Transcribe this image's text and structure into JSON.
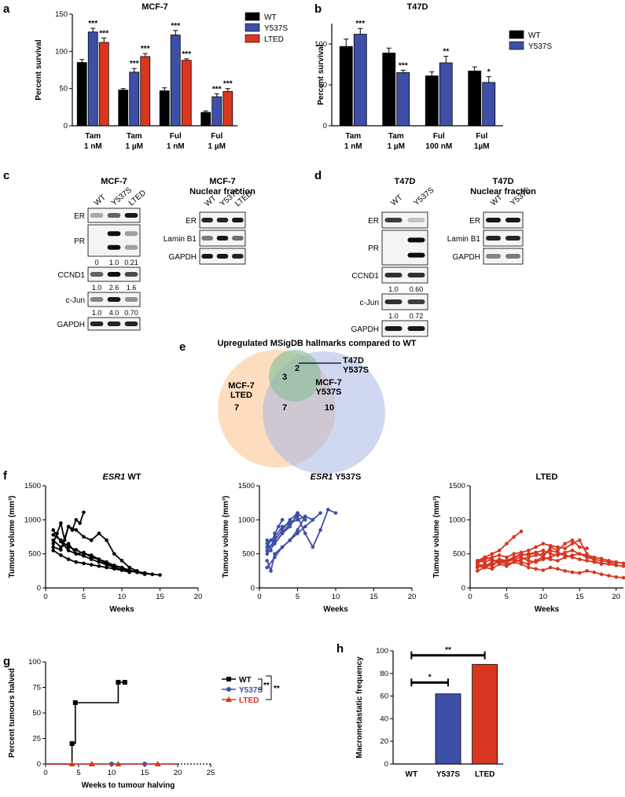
{
  "panels": {
    "a": "a",
    "b": "b",
    "c": "c",
    "d": "d",
    "e": "e",
    "f": "f",
    "g": "g",
    "h": "h"
  },
  "colors": {
    "wt": "#000000",
    "y537s": "#3d4fa6",
    "lted": "#d93620",
    "venn_orange": "#f9c389",
    "venn_blue": "#b5c0e6",
    "venn_green": "#8bbf9b"
  },
  "chart_data": [
    {
      "id": "a",
      "type": "bar",
      "title": "MCF-7",
      "ylabel": "Percent survival",
      "ylim": [
        0,
        150
      ],
      "yticks": [
        0,
        50,
        100,
        150
      ],
      "categories": [
        [
          "Tam",
          "1 nM"
        ],
        [
          "Tam",
          "1 µM"
        ],
        [
          "Ful",
          "1 nM"
        ],
        [
          "Ful",
          "1 µM"
        ]
      ],
      "series": [
        {
          "name": "WT",
          "values": [
            85,
            48,
            47,
            18
          ],
          "errors": [
            4,
            2,
            4,
            2
          ]
        },
        {
          "name": "Y537S",
          "values": [
            126,
            72,
            122,
            39
          ],
          "errors": [
            5,
            5,
            6,
            4
          ]
        },
        {
          "name": "LTED",
          "values": [
            112,
            93,
            88,
            46
          ],
          "errors": [
            6,
            4,
            2,
            4
          ]
        }
      ],
      "annotations": [
        {
          "group": 0,
          "series": 1,
          "label": "***"
        },
        {
          "group": 0,
          "series": 2,
          "label": "***"
        },
        {
          "group": 1,
          "series": 1,
          "label": "***"
        },
        {
          "group": 1,
          "series": 2,
          "label": "***"
        },
        {
          "group": 2,
          "series": 1,
          "label": "***"
        },
        {
          "group": 2,
          "series": 2,
          "label": "***"
        },
        {
          "group": 3,
          "series": 1,
          "label": "***"
        },
        {
          "group": 3,
          "series": 2,
          "label": "***"
        }
      ],
      "legend": "top-right"
    },
    {
      "id": "b",
      "type": "bar",
      "title": "T47D",
      "ylabel": "Percent survival",
      "ylim": [
        0,
        125
      ],
      "yticks": [
        0,
        50,
        100
      ],
      "categories": [
        [
          "Tam",
          "1 nM"
        ],
        [
          "Tam",
          "1 µM"
        ],
        [
          "Ful",
          "100 nM"
        ],
        [
          "Ful",
          "1µM"
        ]
      ],
      "series": [
        {
          "name": "WT",
          "values": [
            97,
            89,
            61,
            67
          ],
          "errors": [
            9,
            6,
            5,
            5
          ]
        },
        {
          "name": "Y537S",
          "values": [
            112,
            65,
            77,
            53
          ],
          "errors": [
            7,
            3,
            8,
            7
          ]
        }
      ],
      "annotations": [
        {
          "group": 0,
          "series": 1,
          "label": "***"
        },
        {
          "group": 1,
          "series": 1,
          "label": "***"
        },
        {
          "group": 2,
          "series": 1,
          "label": "**"
        },
        {
          "group": 3,
          "series": 1,
          "label": "*"
        }
      ],
      "legend": "top-right"
    },
    {
      "id": "f1",
      "type": "line",
      "title": "ESR1 WT",
      "title_italic": "ESR1",
      "title_rest": " WT",
      "xlabel": "Weeks",
      "ylabel": "Tumour volume (mm³)",
      "xlim": [
        0,
        20
      ],
      "ylim": [
        0,
        1500
      ],
      "xticks": [
        0,
        5,
        10,
        15,
        20
      ],
      "yticks": [
        0,
        500,
        1000,
        1500
      ],
      "color": "#000000",
      "series": [
        {
          "x": [
            1,
            1.5,
            2,
            2.5,
            3,
            3.5,
            4,
            4.5,
            5
          ],
          "y": [
            650,
            800,
            950,
            700,
            900,
            850,
            1000,
            950,
            1110
          ]
        },
        {
          "x": [
            1,
            2,
            3,
            4,
            5,
            6,
            7,
            8,
            9,
            10,
            11,
            12,
            13
          ],
          "y": [
            700,
            600,
            650,
            500,
            520,
            450,
            420,
            350,
            320,
            300,
            250,
            230,
            200
          ]
        },
        {
          "x": [
            1,
            2,
            3,
            4,
            5,
            6,
            7,
            8,
            9,
            10,
            11,
            12,
            13,
            14,
            15
          ],
          "y": [
            780,
            700,
            600,
            560,
            500,
            480,
            420,
            380,
            330,
            300,
            260,
            240,
            220,
            200,
            190
          ]
        },
        {
          "x": [
            1,
            2,
            3,
            4,
            5,
            6,
            7,
            8,
            9,
            10,
            11,
            12
          ],
          "y": [
            600,
            560,
            900,
            850,
            750,
            700,
            800,
            700,
            500,
            400,
            300,
            250
          ]
        },
        {
          "x": [
            1,
            2,
            3,
            4,
            5,
            6,
            7,
            8,
            9,
            10,
            11
          ],
          "y": [
            550,
            480,
            420,
            380,
            360,
            340,
            320,
            300,
            280,
            260,
            230
          ]
        },
        {
          "x": [
            1,
            2,
            3,
            4,
            5,
            6,
            7,
            8,
            9,
            10,
            11,
            12,
            13,
            14
          ],
          "y": [
            850,
            680,
            550,
            500,
            470,
            420,
            380,
            340,
            300,
            270,
            250,
            230,
            210,
            200
          ]
        }
      ]
    },
    {
      "id": "f2",
      "type": "line",
      "title": "ESR1 Y537S",
      "title_italic": "ESR1",
      "title_rest": " Y537S",
      "xlabel": "Weeks",
      "ylabel": "Tumour volume (mm³)",
      "xlim": [
        0,
        20
      ],
      "ylim": [
        0,
        1500
      ],
      "xticks": [
        0,
        5,
        10,
        15,
        20
      ],
      "yticks": [
        0,
        500,
        1000,
        1500
      ],
      "color": "#3d4fa6",
      "series": [
        {
          "x": [
            1,
            1.5,
            2,
            2.5,
            3
          ],
          "y": [
            700,
            550,
            800,
            900,
            1000
          ]
        },
        {
          "x": [
            1,
            1.5,
            2,
            3,
            4,
            5
          ],
          "y": [
            600,
            700,
            650,
            800,
            900,
            1100
          ]
        },
        {
          "x": [
            1,
            2,
            3,
            4,
            5,
            6,
            7
          ],
          "y": [
            500,
            650,
            800,
            950,
            1000,
            1050,
            1000
          ]
        },
        {
          "x": [
            1,
            2,
            3,
            4,
            5,
            6,
            7,
            8
          ],
          "y": [
            300,
            450,
            600,
            700,
            800,
            900,
            1000,
            1100
          ]
        },
        {
          "x": [
            1,
            2,
            3,
            4,
            5,
            6,
            7,
            8,
            9,
            10
          ],
          "y": [
            650,
            750,
            900,
            950,
            1050,
            800,
            600,
            850,
            1150,
            1100
          ]
        },
        {
          "x": [
            1,
            1.5,
            2,
            3,
            4,
            5,
            6
          ],
          "y": [
            400,
            250,
            500,
            600,
            700,
            850,
            1050
          ]
        },
        {
          "x": [
            1,
            2,
            3,
            4,
            5,
            6
          ],
          "y": [
            550,
            700,
            850,
            1000,
            1100,
            1000
          ]
        }
      ]
    },
    {
      "id": "f3",
      "type": "line",
      "title": "LTED",
      "xlabel": "Weeks",
      "ylabel": "Tumour volume (mm³)",
      "xlim": [
        0,
        21
      ],
      "ylim": [
        0,
        1500
      ],
      "xticks": [
        0,
        5,
        10,
        15,
        20
      ],
      "yticks": [
        0,
        500,
        1000,
        1500
      ],
      "color": "#d93620",
      "series": [
        {
          "x": [
            1,
            2,
            3,
            4,
            5,
            6,
            7
          ],
          "y": [
            350,
            450,
            500,
            550,
            650,
            750,
            830
          ]
        },
        {
          "x": [
            1,
            2,
            3,
            4,
            5,
            6,
            7,
            8,
            9,
            10,
            11,
            12,
            13,
            14,
            15,
            16,
            17,
            18,
            19,
            20,
            21
          ],
          "y": [
            300,
            350,
            320,
            400,
            380,
            420,
            450,
            400,
            380,
            420,
            450,
            500,
            480,
            450,
            420,
            400,
            380,
            360,
            350,
            330,
            320
          ]
        },
        {
          "x": [
            1,
            2,
            3,
            4,
            5,
            6,
            7,
            8,
            9,
            10,
            11,
            12,
            13,
            14,
            15,
            16
          ],
          "y": [
            400,
            380,
            420,
            360,
            400,
            450,
            500,
            480,
            520,
            450,
            600,
            550,
            650,
            700,
            600,
            580
          ]
        },
        {
          "x": [
            1,
            2,
            3,
            4,
            5,
            6,
            7,
            8,
            9,
            10,
            11,
            12,
            13,
            14,
            15,
            16,
            17,
            18,
            19,
            20,
            21
          ],
          "y": [
            250,
            300,
            280,
            350,
            320,
            380,
            350,
            300,
            280,
            260,
            300,
            280,
            250,
            230,
            220,
            250,
            230,
            200,
            180,
            160,
            150
          ]
        },
        {
          "x": [
            1,
            2,
            3,
            4,
            5,
            6,
            7,
            8,
            9,
            10,
            11,
            12,
            13,
            14,
            15,
            16,
            17,
            18,
            19,
            20,
            21
          ],
          "y": [
            350,
            320,
            380,
            420,
            400,
            450,
            480,
            500,
            520,
            550,
            500,
            480,
            520,
            550,
            500,
            480,
            450,
            430,
            400,
            380,
            360
          ]
        },
        {
          "x": [
            1,
            2,
            3,
            4,
            5,
            6,
            7,
            8,
            9,
            10,
            11,
            12,
            13,
            14,
            15,
            16,
            17,
            18
          ],
          "y": [
            380,
            420,
            450,
            480,
            450,
            500,
            520,
            550,
            600,
            650,
            620,
            600,
            580,
            650,
            700,
            500,
            400,
            350
          ]
        },
        {
          "x": [
            1,
            2,
            3,
            4,
            5,
            6,
            7,
            8,
            9,
            10,
            11,
            12,
            13,
            14,
            15,
            16,
            17,
            18,
            19,
            20
          ],
          "y": [
            320,
            300,
            350,
            380,
            400,
            420,
            380,
            350,
            400,
            450,
            420,
            400,
            450,
            480,
            500,
            450,
            420,
            400,
            380,
            350
          ]
        },
        {
          "x": [
            1,
            2,
            3,
            4,
            5,
            6,
            7,
            8,
            9,
            10,
            11,
            12,
            13,
            14
          ],
          "y": [
            400,
            450,
            420,
            380,
            350,
            380,
            420,
            450,
            480,
            500,
            550,
            520,
            480,
            450
          ]
        }
      ]
    },
    {
      "id": "g",
      "type": "line",
      "xlabel": "Weeks to tumour halving",
      "ylabel": "Percent tumours halved",
      "xlim": [
        0,
        25
      ],
      "ylim": [
        0,
        100
      ],
      "xticks": [
        0,
        5,
        10,
        15,
        20,
        25
      ],
      "yticks": [
        0,
        25,
        50,
        75,
        100
      ],
      "series": [
        {
          "name": "WT",
          "step_x": [
            0,
            4,
            4,
            4.5,
            4.5,
            11,
            11,
            12
          ],
          "step_y": [
            0,
            0,
            20,
            20,
            60,
            60,
            80,
            80
          ],
          "markers_x": [
            4,
            4.5,
            11,
            12
          ],
          "markers_y": [
            20,
            60,
            80,
            80
          ]
        },
        {
          "name": "Y537S",
          "step_x": [
            0,
            20
          ],
          "step_y": [
            0,
            0
          ],
          "markers_x": [
            10,
            15
          ],
          "markers_y": [
            0,
            0
          ]
        },
        {
          "name": "LTED",
          "step_x": [
            0,
            20
          ],
          "step_y": [
            0,
            0
          ],
          "markers_x": [
            4,
            7,
            11,
            17
          ],
          "markers_y": [
            0,
            0,
            0,
            0
          ]
        }
      ],
      "legend": "right",
      "significance": [
        "**",
        "**"
      ]
    },
    {
      "id": "h",
      "type": "bar",
      "ylabel": "Macrometastatic frequency",
      "ylim": [
        0,
        100
      ],
      "yticks": [
        0,
        20,
        40,
        60,
        80,
        100
      ],
      "categories": [
        "WT",
        "Y537S",
        "LTED"
      ],
      "values": [
        0,
        62,
        88
      ],
      "significance": [
        {
          "from": 0,
          "to": 1,
          "label": "*"
        },
        {
          "from": 0,
          "to": 2,
          "label": "**"
        }
      ]
    }
  ],
  "blots": {
    "c_left": {
      "title": "MCF-7",
      "lanes": [
        "WT",
        "Y537S",
        "LTED"
      ],
      "rows": [
        "ER",
        "PR",
        "CCND1",
        "c-Jun",
        "GAPDH"
      ],
      "quant": [
        [
          "0",
          "1.0",
          "0.21"
        ],
        [
          "1.0",
          "2.6",
          "1.6"
        ],
        [
          "1.0",
          "4.0",
          "0.70"
        ]
      ]
    },
    "c_right": {
      "title": "MCF-7",
      "subtitle": "Nuclear fraction",
      "lanes": [
        "WT",
        "Y537S",
        "LTED"
      ],
      "rows": [
        "ER",
        "Lamin B1",
        "GAPDH"
      ]
    },
    "d_left": {
      "title": "T47D",
      "lanes": [
        "WT",
        "Y537S"
      ],
      "rows": [
        "ER",
        "PR",
        "CCND1",
        "c-Jun",
        "GAPDH"
      ],
      "quant": [
        [
          "1.0",
          "0.60"
        ],
        [
          "1.0",
          "0.72"
        ]
      ]
    },
    "d_right": {
      "title": "T47D",
      "subtitle": "Nuclear fraction",
      "lanes": [
        "WT",
        "Y537S"
      ],
      "rows": [
        "ER",
        "Lamin B1",
        "GAPDH"
      ]
    }
  },
  "venn": {
    "title": "Upregulated MSigDB hallmarks compared to WT",
    "sets": [
      {
        "label1": "MCF-7",
        "label2": "LTED",
        "only": "7"
      },
      {
        "label1": "MCF-7",
        "label2": "Y537S",
        "only": "10"
      },
      {
        "label1": "T47D",
        "label2": "Y537S",
        "only": "2"
      }
    ],
    "overlap_all": "3",
    "overlap_mcf": "7"
  }
}
